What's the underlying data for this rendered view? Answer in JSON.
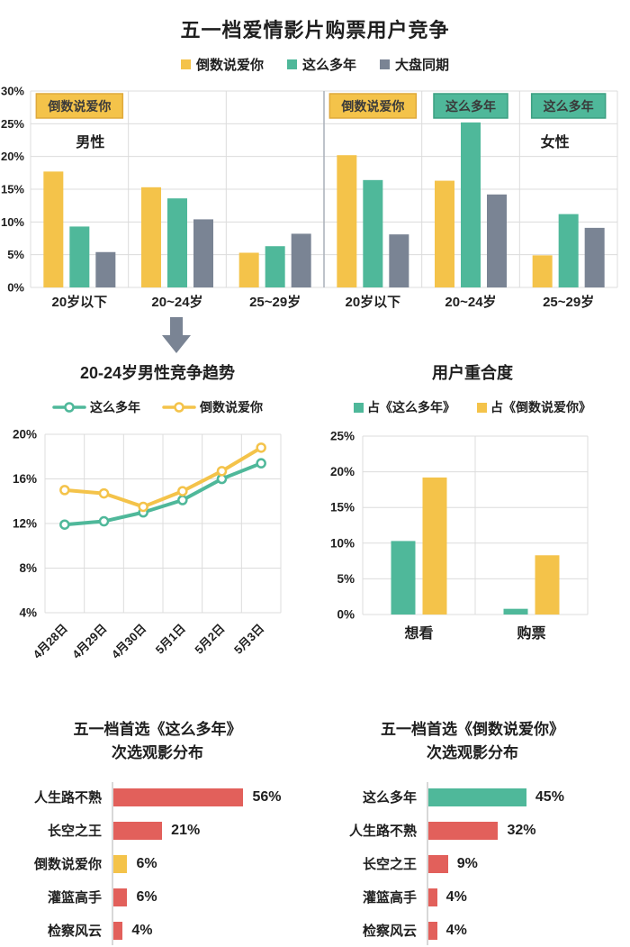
{
  "header": {
    "title": "五一档爱情影片购票用户竞争"
  },
  "colors": {
    "yellow": "#F4C34A",
    "green": "#4FB89A",
    "slate": "#7A8494",
    "red": "#E2605B",
    "grid": "#DCDCDC",
    "divider": "#A9AFB9",
    "text": "#1F1F1F",
    "annotation_text": "#3A3A3A"
  },
  "chart_data": [
    {
      "id": "age_competition",
      "type": "bar",
      "title": "五一档爱情影片购票用户竞争",
      "categories": [
        "20岁以下",
        "20~24岁",
        "25~29岁",
        "20岁以下",
        "20~24岁",
        "25~29岁"
      ],
      "series": [
        {
          "name": "倒数说爱你",
          "color": "#F4C34A",
          "values": [
            17.7,
            15.3,
            5.3,
            20.2,
            16.3,
            4.9
          ]
        },
        {
          "name": "这么多年",
          "color": "#4FB89A",
          "values": [
            9.3,
            13.6,
            6.3,
            16.4,
            25.2,
            11.2
          ]
        },
        {
          "name": "大盘同期",
          "color": "#7A8494",
          "values": [
            5.4,
            10.4,
            8.2,
            8.1,
            14.2,
            9.1
          ]
        }
      ],
      "ylim": [
        0,
        30
      ],
      "yticks": [
        "30%",
        "25%",
        "20%",
        "15%",
        "10%",
        "5%",
        "0%"
      ],
      "male_label": "男性",
      "female_label": "女性",
      "annotations": [
        {
          "label": "倒数说爱你",
          "column": 0,
          "fill": "#F4C34A",
          "border": "#DFA93B"
        },
        {
          "label": "倒数说爱你",
          "column": 3,
          "fill": "#F4C34A",
          "border": "#DFA93B"
        },
        {
          "label": "这么多年",
          "column": 4,
          "fill": "#4FB89A",
          "border": "#3B9F81"
        },
        {
          "label": "这么多年",
          "column": 5,
          "fill": "#4FB89A",
          "border": "#3B9F81"
        }
      ]
    },
    {
      "id": "trend",
      "type": "line",
      "title": "20-24岁男性竞争趋势",
      "x": [
        "4月28日",
        "4月29日",
        "4月30日",
        "5月1日",
        "5月2日",
        "5月3日"
      ],
      "series": [
        {
          "name": "这么多年",
          "color": "#4FB89A",
          "values": [
            11.9,
            12.2,
            13.0,
            14.1,
            16.0,
            17.4
          ]
        },
        {
          "name": "倒数说爱你",
          "color": "#F4C34A",
          "values": [
            15.0,
            14.7,
            13.5,
            14.9,
            16.7,
            18.8
          ]
        }
      ],
      "ylim": [
        4,
        20
      ],
      "yticks": [
        "20%",
        "16%",
        "12%",
        "8%",
        "4%"
      ]
    },
    {
      "id": "overlap",
      "type": "bar",
      "title": "用户重合度",
      "categories": [
        "想看",
        "购票"
      ],
      "series": [
        {
          "name": "占《这么多年》",
          "color": "#4FB89A",
          "values": [
            10.3,
            0.8
          ]
        },
        {
          "name": "占《倒数说爱你》",
          "color": "#F4C34A",
          "values": [
            19.2,
            8.3
          ]
        }
      ],
      "ylim": [
        0,
        25
      ],
      "yticks": [
        "25%",
        "20%",
        "15%",
        "10%",
        "5%",
        "0%"
      ]
    },
    {
      "id": "secondary_from_zmdn",
      "type": "bar",
      "orientation": "horizontal",
      "title_lines": [
        "五一档首选《这么多年》",
        "次选观影分布"
      ],
      "categories": [
        "人生路不熟",
        "长空之王",
        "倒数说爱你",
        "灌篮高手",
        "检察风云"
      ],
      "values": [
        56,
        21,
        6,
        6,
        4
      ],
      "value_labels": [
        "56%",
        "21%",
        "6%",
        "6%",
        "4%"
      ],
      "bar_colors": [
        "#E2605B",
        "#E2605B",
        "#F4C34A",
        "#E2605B",
        "#E2605B"
      ]
    },
    {
      "id": "secondary_from_dssan",
      "type": "bar",
      "orientation": "horizontal",
      "title_lines": [
        "五一档首选《倒数说爱你》",
        "次选观影分布"
      ],
      "categories": [
        "这么多年",
        "人生路不熟",
        "长空之王",
        "灌篮高手",
        "检察风云"
      ],
      "values": [
        45,
        32,
        9,
        4,
        4
      ],
      "value_labels": [
        "45%",
        "32%",
        "9%",
        "4%",
        "4%"
      ],
      "bar_colors": [
        "#4FB89A",
        "#E2605B",
        "#E2605B",
        "#E2605B",
        "#E2605B"
      ]
    }
  ]
}
